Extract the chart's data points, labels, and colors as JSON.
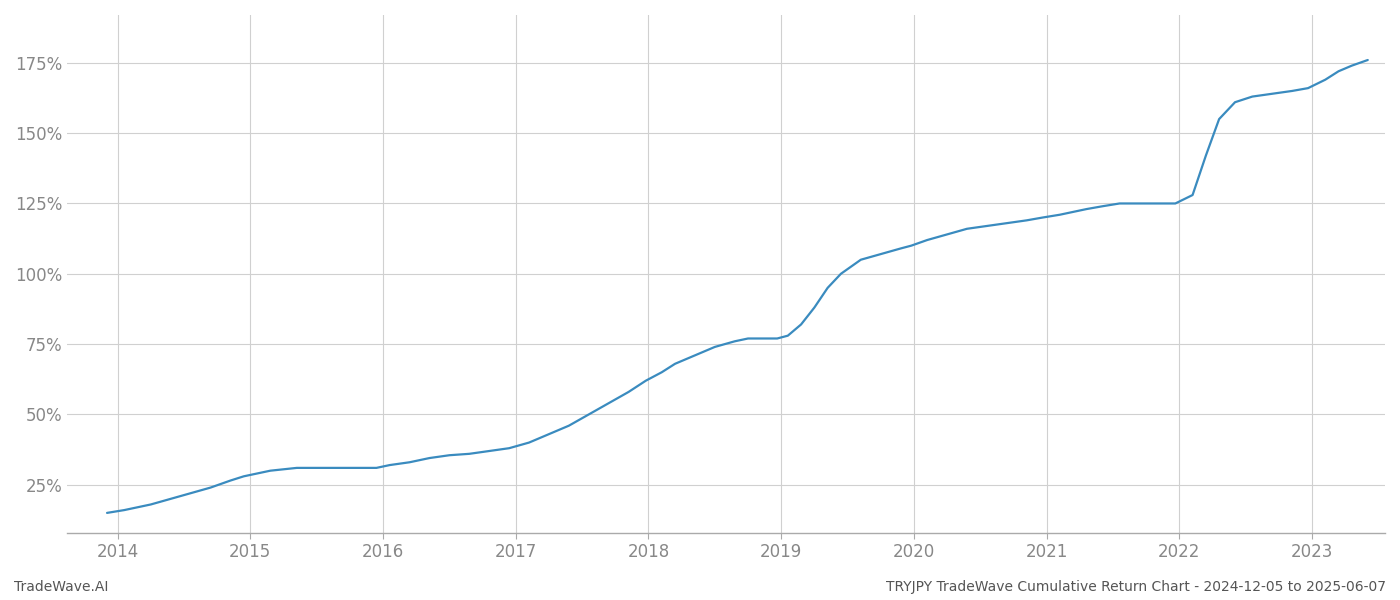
{
  "title": "TRYJPY TradeWave Cumulative Return Chart - 2024-12-05 to 2025-06-07",
  "watermark": "TradeWave.AI",
  "line_color": "#3a8bbf",
  "background_color": "#ffffff",
  "grid_color": "#d0d0d0",
  "x_years": [
    2014,
    2015,
    2016,
    2017,
    2018,
    2019,
    2020,
    2021,
    2022,
    2023
  ],
  "y_ticks": [
    25,
    50,
    75,
    100,
    125,
    150,
    175
  ],
  "xlim_start": 2013.62,
  "xlim_end": 2023.55,
  "ylim_bottom": 8,
  "ylim_top": 192,
  "data_x": [
    2013.92,
    2014.05,
    2014.15,
    2014.25,
    2014.4,
    2014.55,
    2014.7,
    2014.85,
    2014.95,
    2015.05,
    2015.15,
    2015.25,
    2015.35,
    2015.5,
    2015.65,
    2015.8,
    2015.95,
    2016.05,
    2016.2,
    2016.35,
    2016.5,
    2016.65,
    2016.8,
    2016.95,
    2017.1,
    2017.25,
    2017.4,
    2017.55,
    2017.7,
    2017.85,
    2017.98,
    2018.1,
    2018.2,
    2018.35,
    2018.5,
    2018.65,
    2018.75,
    2018.88,
    2018.97,
    2019.05,
    2019.15,
    2019.25,
    2019.35,
    2019.45,
    2019.6,
    2019.75,
    2019.9,
    2019.98,
    2020.1,
    2020.25,
    2020.4,
    2020.55,
    2020.7,
    2020.85,
    2020.97,
    2021.1,
    2021.2,
    2021.3,
    2021.42,
    2021.55,
    2021.7,
    2021.85,
    2021.97,
    2022.1,
    2022.2,
    2022.3,
    2022.42,
    2022.55,
    2022.7,
    2022.85,
    2022.97,
    2023.1,
    2023.2,
    2023.3,
    2023.42
  ],
  "data_y": [
    15,
    16,
    17,
    18,
    20,
    22,
    24,
    26.5,
    28,
    29,
    30,
    30.5,
    31,
    31,
    31,
    31,
    31,
    32,
    33,
    34.5,
    35.5,
    36,
    37,
    38,
    40,
    43,
    46,
    50,
    54,
    58,
    62,
    65,
    68,
    71,
    74,
    76,
    77,
    77,
    77,
    78,
    82,
    88,
    95,
    100,
    105,
    107,
    109,
    110,
    112,
    114,
    116,
    117,
    118,
    119,
    120,
    121,
    122,
    123,
    124,
    125,
    125,
    125,
    125,
    128,
    142,
    155,
    161,
    163,
    164,
    165,
    166,
    169,
    172,
    174,
    176
  ],
  "tick_fontsize": 12,
  "footer_fontsize": 10,
  "line_width": 1.6
}
